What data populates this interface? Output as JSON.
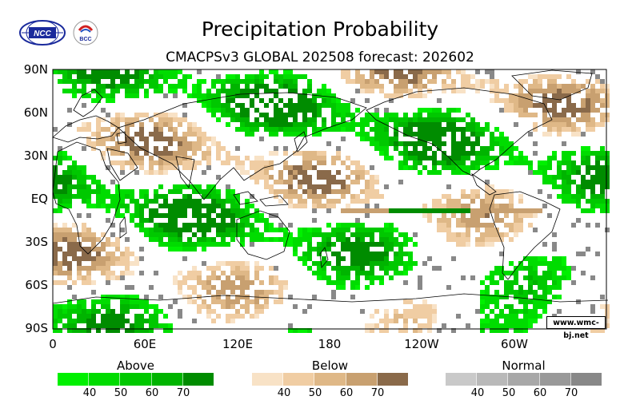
{
  "header": {
    "title": "Precipitation Probability",
    "subtitle": "CMACPSv3 GLOBAL 202508 forecast: 202602"
  },
  "logos": [
    {
      "name": "NCC",
      "text": "NCC"
    },
    {
      "name": "BCC",
      "text": "BCC"
    }
  ],
  "map": {
    "lat_labels": [
      "90N",
      "60N",
      "30N",
      "EQ",
      "30S",
      "60S",
      "90S"
    ],
    "lon_labels": [
      "0",
      "60E",
      "120E",
      "180",
      "120W",
      "60W"
    ],
    "credit": "www.wmc-bj.net"
  },
  "legend": {
    "above": {
      "title": "Above",
      "colors": [
        "#00f000",
        "#00dc00",
        "#00c800",
        "#00b400",
        "#008c00"
      ],
      "ticks": [
        "40",
        "50",
        "60",
        "70"
      ]
    },
    "below": {
      "title": "Below",
      "colors": [
        "#f8e2c6",
        "#f0cda3",
        "#dfb887",
        "#c8a070",
        "#8a6a4a"
      ],
      "ticks": [
        "40",
        "50",
        "60",
        "70"
      ]
    },
    "normal": {
      "title": "Normal",
      "colors": [
        "#c9c9c9",
        "#b9b9b9",
        "#a8a8a8",
        "#999999",
        "#888888"
      ],
      "ticks": [
        "40",
        "50",
        "60",
        "70"
      ]
    }
  }
}
